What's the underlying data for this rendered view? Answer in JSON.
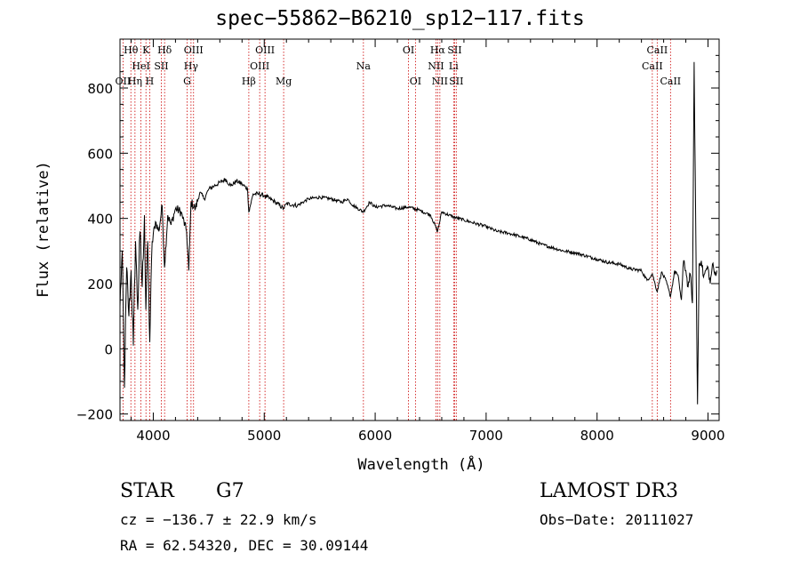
{
  "chart_data": {
    "type": "line",
    "title": "spec−55862−B6210_sp12−117.fits",
    "xlabel": "Wavelength (Å)",
    "ylabel": "Flux (relative)",
    "xlim": [
      3700,
      9100
    ],
    "ylim": [
      -220,
      950
    ],
    "xticks": [
      4000,
      5000,
      6000,
      7000,
      8000,
      9000
    ],
    "yticks": [
      -200,
      0,
      200,
      400,
      600,
      800
    ],
    "series": [
      {
        "name": "flux",
        "x": [
          3700,
          3720,
          3740,
          3760,
          3780,
          3800,
          3820,
          3840,
          3860,
          3880,
          3900,
          3920,
          3933,
          3950,
          3968,
          3990,
          4020,
          4050,
          4080,
          4101,
          4130,
          4160,
          4200,
          4250,
          4300,
          4320,
          4340,
          4380,
          4420,
          4460,
          4500,
          4550,
          4600,
          4650,
          4700,
          4750,
          4800,
          4850,
          4861,
          4900,
          4950,
          5000,
          5100,
          5175,
          5200,
          5300,
          5400,
          5500,
          5600,
          5700,
          5750,
          5800,
          5893,
          5950,
          6000,
          6100,
          6200,
          6300,
          6400,
          6500,
          6563,
          6600,
          6700,
          6800,
          6900,
          7000,
          7100,
          7200,
          7300,
          7400,
          7500,
          7600,
          7700,
          7800,
          7900,
          8000,
          8100,
          8200,
          8300,
          8400,
          8450,
          8498,
          8542,
          8580,
          8620,
          8662,
          8700,
          8720,
          8740,
          8760,
          8780,
          8800,
          8820,
          8840,
          8860,
          8875,
          8890,
          8905,
          8920,
          8940,
          8960,
          8980,
          9000,
          9020,
          9040,
          9060,
          9080
        ],
        "y": [
          130,
          300,
          -120,
          250,
          100,
          240,
          10,
          330,
          120,
          360,
          190,
          410,
          120,
          330,
          20,
          330,
          390,
          360,
          440,
          250,
          410,
          380,
          430,
          420,
          360,
          240,
          450,
          430,
          480,
          460,
          490,
          500,
          510,
          520,
          500,
          515,
          505,
          490,
          420,
          475,
          475,
          470,
          450,
          430,
          445,
          440,
          460,
          465,
          460,
          450,
          460,
          440,
          420,
          450,
          435,
          440,
          430,
          435,
          425,
          410,
          360,
          420,
          405,
          395,
          385,
          375,
          360,
          355,
          345,
          335,
          320,
          310,
          300,
          295,
          285,
          275,
          265,
          260,
          245,
          240,
          210,
          230,
          175,
          235,
          210,
          160,
          240,
          230,
          200,
          150,
          270,
          240,
          190,
          230,
          140,
          880,
          350,
          -170,
          260,
          270,
          220,
          240,
          250,
          200,
          260,
          230,
          240
        ]
      }
    ],
    "lines": [
      {
        "name": "O II",
        "label": "OII",
        "wl": 3727,
        "row": 2
      },
      {
        "name": "H theta",
        "label": "Hθ",
        "wl": 3798,
        "row": 0
      },
      {
        "name": "H eta",
        "label": "Hη",
        "wl": 3835,
        "row": 2
      },
      {
        "name": "He I",
        "label": "HeI",
        "wl": 3889,
        "row": 1
      },
      {
        "name": "K",
        "label": "K",
        "wl": 3934,
        "row": 0
      },
      {
        "name": "H",
        "label": "H",
        "wl": 3968,
        "row": 2
      },
      {
        "name": "S II (4072)",
        "label": "SII",
        "wl": 4072,
        "row": 1
      },
      {
        "name": "H delta",
        "label": "Hδ",
        "wl": 4102,
        "row": 0
      },
      {
        "name": "G",
        "label": "G",
        "wl": 4305,
        "row": 2
      },
      {
        "name": "H gamma",
        "label": "Hγ",
        "wl": 4340,
        "row": 1
      },
      {
        "name": "O III (4363)",
        "label": "OIII",
        "wl": 4363,
        "row": 0
      },
      {
        "name": "H beta",
        "label": "Hβ",
        "wl": 4861,
        "row": 2
      },
      {
        "name": "O III (4959)",
        "label": "OIII",
        "wl": 4959,
        "row": 1
      },
      {
        "name": "O III (5007)",
        "label": "OIII",
        "wl": 5007,
        "row": 0
      },
      {
        "name": "Mg",
        "label": "Mg",
        "wl": 5175,
        "row": 2
      },
      {
        "name": "Na",
        "label": "Na",
        "wl": 5894,
        "row": 1
      },
      {
        "name": "O I (6300)",
        "label": "OI",
        "wl": 6300,
        "row": 0
      },
      {
        "name": "O I (6363)",
        "label": "OI",
        "wl": 6363,
        "row": 2
      },
      {
        "name": "N II (6548)",
        "label": "NII",
        "wl": 6548,
        "row": 1
      },
      {
        "name": "H alpha",
        "label": "Hα",
        "wl": 6563,
        "row": 0
      },
      {
        "name": "N II (6583)",
        "label": "NII",
        "wl": 6583,
        "row": 2
      },
      {
        "name": "Li",
        "label": "Li",
        "wl": 6707,
        "row": 1
      },
      {
        "name": "S II (6716)",
        "label": "SII",
        "wl": 6716,
        "row": 0
      },
      {
        "name": "S II (6731)",
        "label": "SII",
        "wl": 6731,
        "row": 2
      },
      {
        "name": "Ca II (8498)",
        "label": "CaII",
        "wl": 8498,
        "row": 1
      },
      {
        "name": "Ca II (8542)",
        "label": "CaII",
        "wl": 8542,
        "row": 0
      },
      {
        "name": "Ca II (8662)",
        "label": "CaII",
        "wl": 8662,
        "row": 2
      }
    ]
  },
  "info": {
    "class": "STAR",
    "subclass": "G7",
    "survey": "LAMOST DR3",
    "cz": "cz = −136.7 ± 22.9 km/s",
    "obs_date": "Obs−Date: 20111027",
    "coords": "RA =  62.54320, DEC =  30.09144"
  }
}
